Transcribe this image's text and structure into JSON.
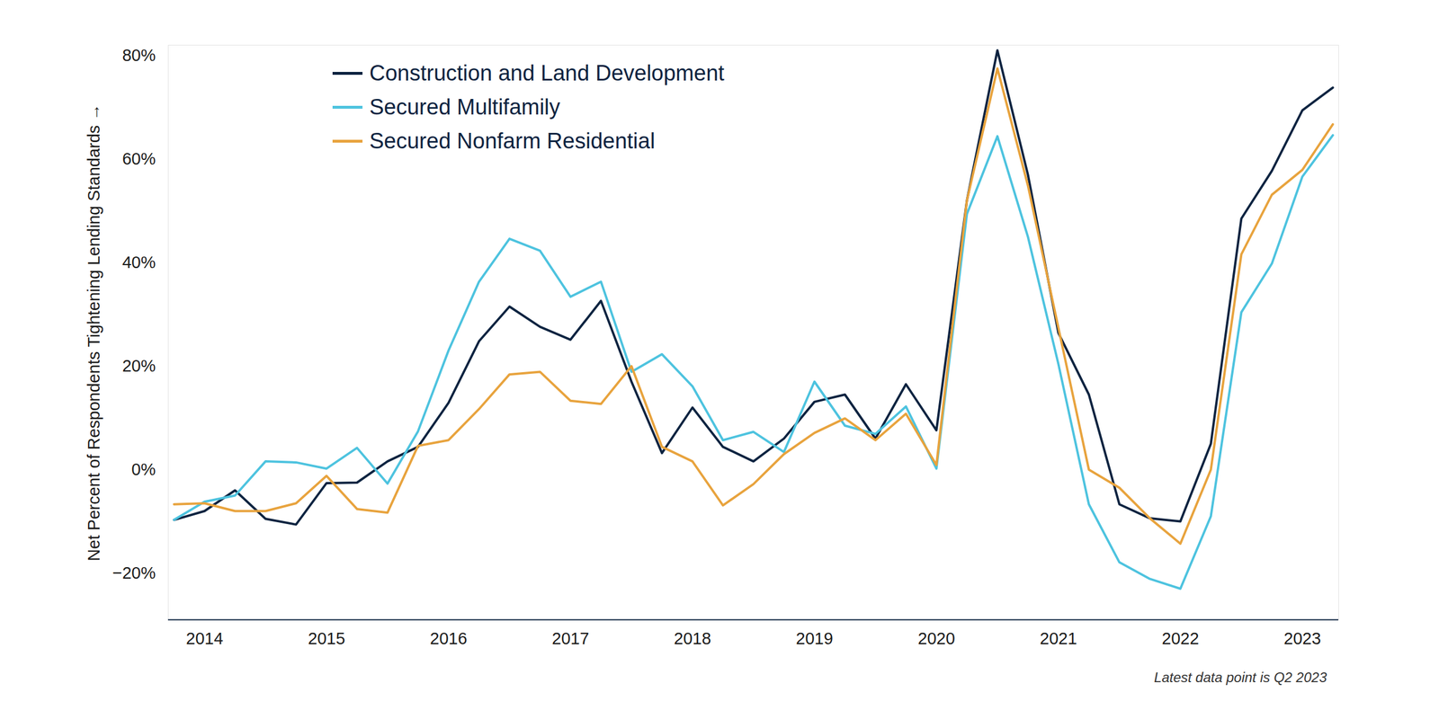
{
  "chart_data": {
    "type": "line",
    "y_label": "Net Percent of Respondents Tightening Lending Standards",
    "caption": "Latest data point is Q2 2023",
    "categories": [
      null,
      "2014",
      null,
      null,
      null,
      "2015",
      null,
      null,
      null,
      "2016",
      null,
      null,
      null,
      "2017",
      null,
      null,
      null,
      "2018",
      null,
      null,
      null,
      "2019",
      null,
      null,
      null,
      "2020",
      null,
      null,
      null,
      "2021",
      null,
      null,
      null,
      "2022",
      null,
      null,
      null,
      "2023",
      null
    ],
    "series": [
      {
        "name": "Construction and Land Development",
        "color": "#0c2340",
        "values": [
          -9.7,
          -8,
          -4,
          -9.5,
          -10.6,
          -2.6,
          -2.5,
          1.6,
          4.4,
          12.9,
          24.8,
          31.5,
          27.6,
          25.1,
          32.6,
          17,
          3.2,
          12,
          4.4,
          1.6,
          6,
          13.1,
          14.5,
          6,
          16.5,
          7.6,
          52,
          81,
          57,
          26.4,
          14.5,
          -6.7,
          -9.4,
          -10,
          5,
          48.5,
          57.7,
          69.4,
          73.8
        ]
      },
      {
        "name": "Secured Multifamily",
        "color": "#4dc3df",
        "values": [
          -9.7,
          -6.2,
          -5,
          1.6,
          1.4,
          0.2,
          4.2,
          -2.7,
          7.4,
          23,
          36.3,
          44.6,
          42.3,
          33.4,
          36.3,
          18.9,
          22.3,
          16.1,
          5.7,
          7.3,
          3.4,
          17,
          8.5,
          6.9,
          12.2,
          0.2,
          49.4,
          64.4,
          45,
          20.4,
          -6.7,
          -17.9,
          -21.1,
          -23,
          -9,
          30.4,
          39.8,
          56.6,
          64.6
        ]
      },
      {
        "name": "Secured Nonfarm Residential",
        "color": "#e8a33d",
        "values": [
          -6.7,
          -6.5,
          -8,
          -8,
          -6.5,
          -1.2,
          -7.6,
          -8.3,
          4.6,
          5.7,
          11.7,
          18.4,
          18.9,
          13.3,
          12.7,
          20,
          4.4,
          1.6,
          -6.9,
          -2.8,
          3,
          7.1,
          9.9,
          5.7,
          10.8,
          0.9,
          52,
          77.5,
          54.9,
          27.4,
          0,
          -3.5,
          -9.4,
          -14.3,
          0,
          41.6,
          53.1,
          57.9,
          66.7
        ]
      }
    ],
    "ylim": [
      -29,
      82
    ],
    "yticks": [
      {
        "value": -20,
        "label": "−20%"
      },
      {
        "value": 0,
        "label": "0%"
      },
      {
        "value": 20,
        "label": "20%"
      },
      {
        "value": 40,
        "label": "40%"
      },
      {
        "value": 60,
        "label": "60%"
      },
      {
        "value": 80,
        "label": "80%"
      }
    ],
    "grid": false,
    "legend": "top-left"
  }
}
